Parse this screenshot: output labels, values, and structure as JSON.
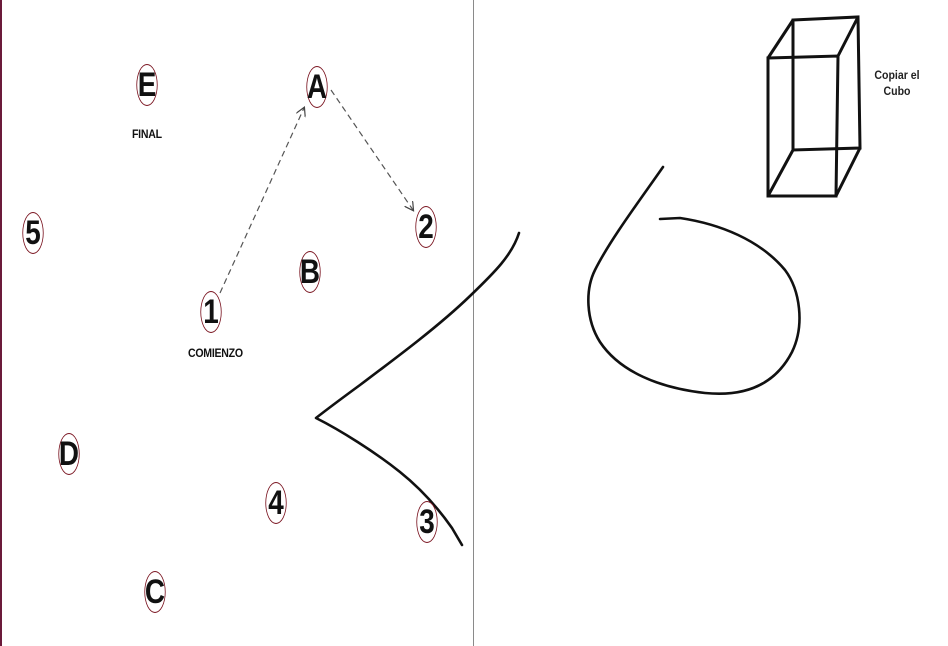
{
  "trail_test": {
    "nodes": {
      "A": "A",
      "B": "B",
      "C": "C",
      "D": "D",
      "E": "E",
      "n1": "1",
      "n2": "2",
      "n3": "3",
      "n4": "4",
      "n5": "5"
    },
    "start_label": "COMIENZO",
    "end_label": "FINAL"
  },
  "cube_task": {
    "caption_line1": "Copiar el",
    "caption_line2": "Cubo"
  },
  "colors": {
    "node_border": "#7a1420",
    "ink": "#111111",
    "divider": "#8a8a8a"
  }
}
